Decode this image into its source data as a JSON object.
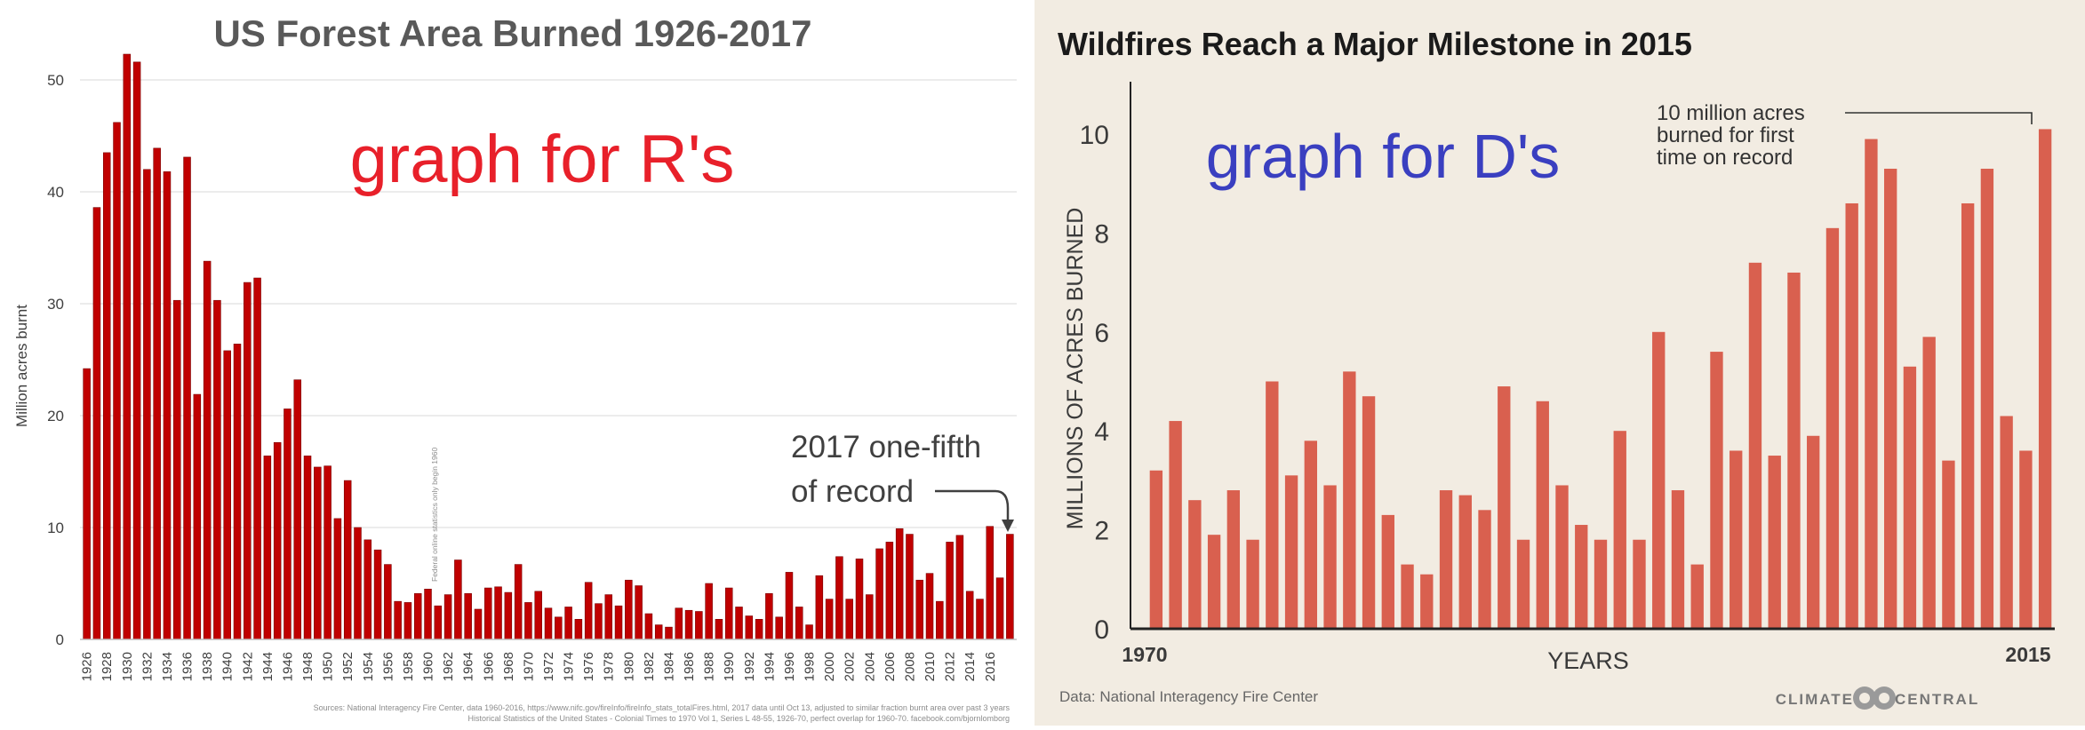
{
  "chart_data": [
    {
      "type": "bar",
      "title": "US Forest Area Burned 1926-2017",
      "xlabel": "",
      "ylabel": "Million acres burnt",
      "ylim": [
        0,
        55
      ],
      "yticks": [
        0,
        10,
        20,
        30,
        40,
        50
      ],
      "color": "#c00000",
      "overlay_text": "graph for R's",
      "overlay_color": "#e8202a",
      "x_tick_labels": [
        "1926",
        "1928",
        "1930",
        "1932",
        "1934",
        "1936",
        "1938",
        "1940",
        "1942",
        "1944",
        "1946",
        "1948",
        "1950",
        "1952",
        "1954",
        "1956",
        "1958",
        "1960",
        "1962",
        "1964",
        "1966",
        "1968",
        "1970",
        "1972",
        "1974",
        "1976",
        "1978",
        "1980",
        "1982",
        "1984",
        "1986",
        "1988",
        "1990",
        "1992",
        "1994",
        "1996",
        "1998",
        "2000",
        "2002",
        "2004",
        "2006",
        "2008",
        "2010",
        "2012",
        "2014",
        "2016"
      ],
      "years_start": 1926,
      "values": [
        24.2,
        38.6,
        43.5,
        46.2,
        52.3,
        51.6,
        42.0,
        43.9,
        41.8,
        30.3,
        43.1,
        21.9,
        33.8,
        30.3,
        25.8,
        26.4,
        31.9,
        32.3,
        16.4,
        17.6,
        20.6,
        23.2,
        16.4,
        15.4,
        15.5,
        10.8,
        14.2,
        10.0,
        8.9,
        8.0,
        6.7,
        3.4,
        3.3,
        4.1,
        4.5,
        3.0,
        4.0,
        7.1,
        4.1,
        2.7,
        4.6,
        4.7,
        4.2,
        6.7,
        3.3,
        4.3,
        2.8,
        2.0,
        2.9,
        1.8,
        5.1,
        3.2,
        4.0,
        3.0,
        5.3,
        4.8,
        2.3,
        1.3,
        1.1,
        2.8,
        2.6,
        2.5,
        5.0,
        1.8,
        4.6,
        2.9,
        2.1,
        1.8,
        4.1,
        2.0,
        6.0,
        2.9,
        1.3,
        5.7,
        3.6,
        7.4,
        3.6,
        7.2,
        4.0,
        8.1,
        8.7,
        9.9,
        9.4,
        5.3,
        5.9,
        3.4,
        8.7,
        9.3,
        4.3,
        3.6,
        10.1,
        5.5,
        9.4
      ],
      "annotations": {
        "line1": "2017 one-fifth",
        "line2": "of record"
      },
      "vertical_note": "Federal online statistics only begin 1960",
      "source_line1": "Sources: National Interagency Fire Center,  data 1960-2016, https://www.nifc.gov/fireInfo/fireInfo_stats_totalFires.html, 2017 data until Oct 13, adjusted to similar fraction burnt area over past 3 years",
      "source_line2": "Historical Statistics of the United States - Colonial Times to 1970 Vol 1, Series L 48-55, 1926-70, perfect overlap for 1960-70. facebook.com/bjornlomborg"
    },
    {
      "type": "bar",
      "title": "Wildfires Reach a Major Milestone in 2015",
      "xlabel": "YEARS",
      "ylabel": "MILLIONS OF ACRES BURNED",
      "ylim": [
        0,
        11
      ],
      "yticks": [
        0,
        2,
        4,
        6,
        8,
        10
      ],
      "x_start_label": "1970",
      "x_end_label": "2015",
      "color": "#d9604f",
      "overlay_text": "graph for D's",
      "overlay_color": "#3a3fc0",
      "years_start": 1970,
      "values": [
        3.2,
        4.2,
        2.6,
        1.9,
        2.8,
        1.8,
        5.0,
        3.1,
        3.8,
        2.9,
        5.2,
        4.7,
        2.3,
        1.3,
        1.1,
        2.8,
        2.7,
        2.4,
        4.9,
        1.8,
        4.6,
        2.9,
        2.1,
        1.8,
        4.0,
        1.8,
        6.0,
        2.8,
        1.3,
        5.6,
        3.6,
        7.4,
        3.5,
        7.2,
        3.9,
        8.1,
        8.6,
        9.9,
        9.3,
        5.3,
        5.9,
        3.4,
        8.6,
        9.3,
        4.3,
        3.6,
        10.1
      ],
      "annotation": "10 million acres\nburned for first\ntime on record",
      "annotation_lines": [
        "10 million acres",
        "burned for first",
        "time on record"
      ],
      "source": "Data: National Interagency Fire Center",
      "brand_left": "CLIMATE",
      "brand_right": "CENTRAL"
    }
  ]
}
